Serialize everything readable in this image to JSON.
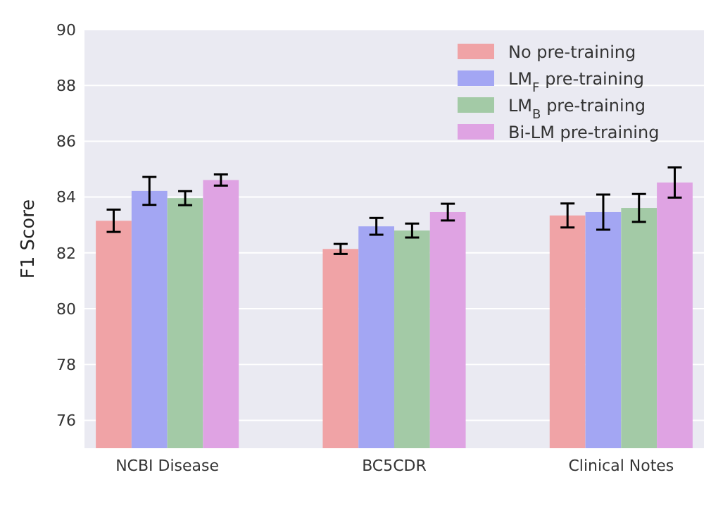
{
  "chart_data": {
    "type": "bar",
    "ylabel": "F1 Score",
    "categories": [
      "NCBI Disease",
      "BC5CDR",
      "Clinical Notes"
    ],
    "series": [
      {
        "name": "No pre-training",
        "color": "#f0a3a6",
        "values": [
          83.15,
          82.14,
          83.34
        ],
        "errors": [
          0.4,
          0.18,
          0.43
        ]
      },
      {
        "name": "LM$_{F}$ pre-training",
        "color": "#a3a6f3",
        "values": [
          84.22,
          82.95,
          83.46
        ],
        "errors": [
          0.5,
          0.3,
          0.63
        ]
      },
      {
        "name": "LM$_{B}$ pre-training",
        "color": "#a3caa6",
        "values": [
          83.96,
          82.8,
          83.61
        ],
        "errors": [
          0.25,
          0.25,
          0.5
        ]
      },
      {
        "name": "Bi-LM pre-training",
        "color": "#dfa3e3",
        "values": [
          84.61,
          83.46,
          84.52
        ],
        "errors": [
          0.2,
          0.3,
          0.54
        ]
      }
    ],
    "ylim": [
      75,
      90
    ],
    "yticks": [
      76,
      78,
      80,
      82,
      84,
      86,
      88,
      90
    ],
    "grid": "y",
    "legend": "top right"
  }
}
